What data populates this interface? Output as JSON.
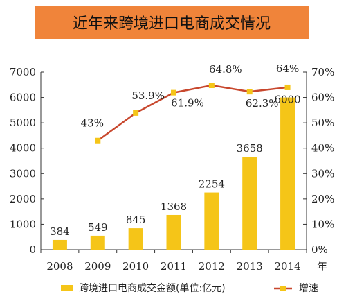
{
  "chart_data": {
    "type": "bar+line",
    "title": "近年来跨境进口电商成交情况",
    "categories": [
      "2008",
      "2009",
      "2010",
      "2011",
      "2012",
      "2013",
      "2014"
    ],
    "xlabel": "年",
    "series": [
      {
        "name": "跨境进口电商成交金额(单位:亿元)",
        "type": "bar",
        "axis": "left",
        "values": [
          384,
          549,
          845,
          1368,
          2254,
          3658,
          6000
        ],
        "labels": [
          "384",
          "549",
          "845",
          "1368",
          "2254",
          "3658",
          "6000"
        ],
        "color": "#F5C518"
      },
      {
        "name": "增速",
        "type": "line",
        "axis": "right",
        "values": [
          null,
          43,
          53.9,
          61.9,
          64.8,
          62.3,
          64
        ],
        "labels": [
          "",
          "43%",
          "53.9%",
          "61.9%",
          "64.8%",
          "62.3%",
          "64%"
        ],
        "color": "#C8472D",
        "marker_color": "#F5C518"
      }
    ],
    "y_left": {
      "ylim": [
        0,
        7000
      ],
      "ticks": [
        "0",
        "1000",
        "2000",
        "3000",
        "4000",
        "5000",
        "6000",
        "7000"
      ]
    },
    "y_right": {
      "ylim": [
        0,
        70
      ],
      "ticks": [
        "0%",
        "10%",
        "20%",
        "30%",
        "40%",
        "50%",
        "60%",
        "70%"
      ]
    },
    "grid": false,
    "legend_position": "bottom",
    "colors": {
      "title_background": "#F0843A",
      "bar": "#F5C518",
      "line": "#C8472D"
    }
  }
}
